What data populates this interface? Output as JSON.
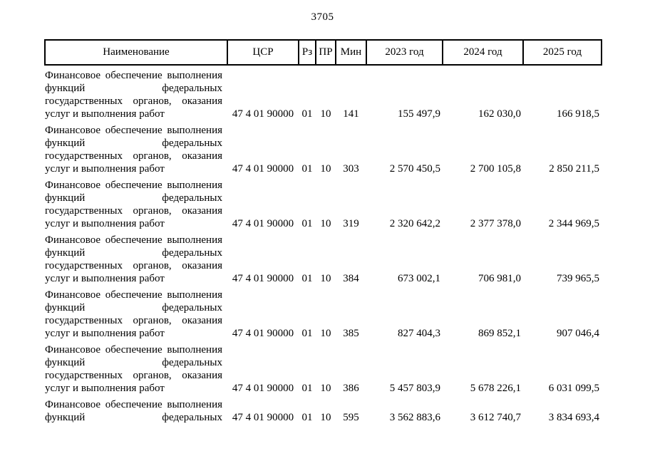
{
  "page": {
    "number": "3705"
  },
  "table": {
    "headers": [
      "Наименование",
      "ЦСР",
      "Рз",
      "ПР",
      "Мин",
      "2023 год",
      "2024 год",
      "2025 год"
    ],
    "rows": [
      {
        "name_lines": [
          "Финансовое обеспечение выполнения",
          "функций федеральных",
          "государственных органов, оказания",
          "услуг и выполнения работ"
        ],
        "justify_last": false,
        "csr": "47 4 01 90000",
        "rz": "01",
        "pr": "10",
        "min": "141",
        "y2023": "155 497,9",
        "y2024": "162 030,0",
        "y2025": "166 918,5"
      },
      {
        "name_lines": [
          "Финансовое обеспечение выполнения",
          "функций федеральных",
          "государственных органов, оказания",
          "услуг и выполнения работ"
        ],
        "justify_last": false,
        "csr": "47 4 01 90000",
        "rz": "01",
        "pr": "10",
        "min": "303",
        "y2023": "2 570 450,5",
        "y2024": "2 700 105,8",
        "y2025": "2 850 211,5"
      },
      {
        "name_lines": [
          "Финансовое обеспечение выполнения",
          "функций федеральных",
          "государственных органов, оказания",
          "услуг и выполнения работ"
        ],
        "justify_last": false,
        "csr": "47 4 01 90000",
        "rz": "01",
        "pr": "10",
        "min": "319",
        "y2023": "2 320 642,2",
        "y2024": "2 377 378,0",
        "y2025": "2 344 969,5"
      },
      {
        "name_lines": [
          "Финансовое обеспечение выполнения",
          "функций федеральных",
          "государственных органов, оказания",
          "услуг и выполнения работ"
        ],
        "justify_last": false,
        "csr": "47 4 01 90000",
        "rz": "01",
        "pr": "10",
        "min": "384",
        "y2023": "673 002,1",
        "y2024": "706 981,0",
        "y2025": "739 965,5"
      },
      {
        "name_lines": [
          "Финансовое обеспечение выполнения",
          "функций федеральных",
          "государственных органов, оказания",
          "услуг и выполнения работ"
        ],
        "justify_last": false,
        "csr": "47 4 01 90000",
        "rz": "01",
        "pr": "10",
        "min": "385",
        "y2023": "827 404,3",
        "y2024": "869 852,1",
        "y2025": "907 046,4"
      },
      {
        "name_lines": [
          "Финансовое обеспечение выполнения",
          "функций федеральных",
          "государственных органов, оказания",
          "услуг и выполнения работ"
        ],
        "justify_last": false,
        "csr": "47 4 01 90000",
        "rz": "01",
        "pr": "10",
        "min": "386",
        "y2023": "5 457 803,9",
        "y2024": "5 678 226,1",
        "y2025": "6 031 099,5"
      },
      {
        "name_lines": [
          "Финансовое обеспечение выполнения",
          "функций федеральных"
        ],
        "justify_last": true,
        "csr": "47 4 01 90000",
        "rz": "01",
        "pr": "10",
        "min": "595",
        "y2023": "3 562 883,6",
        "y2024": "3 612 740,7",
        "y2025": "3 834 693,4"
      }
    ]
  }
}
